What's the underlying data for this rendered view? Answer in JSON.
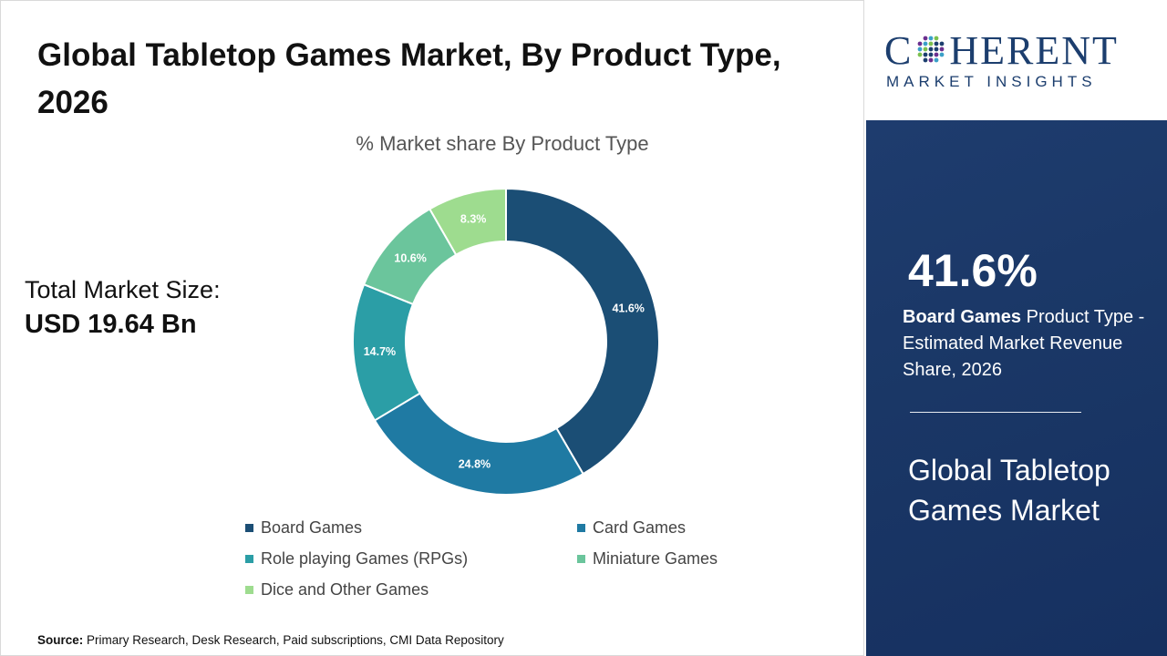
{
  "title": "Global Tabletop Games Market, By Product Type, 2026",
  "total_market": {
    "label": "Total Market Size:",
    "value": "USD 19.64 Bn"
  },
  "source": {
    "label": "Source:",
    "text": "Primary Research, Desk Research, Paid subscriptions, CMI Data Repository"
  },
  "brand": {
    "name_prefix": "C",
    "name_suffix": "HERENT",
    "tagline": "MARKET INSIGHTS"
  },
  "highlight": {
    "percent": "41.6%",
    "segment": "Board Games",
    "description": "Product Type - Estimated Market Revenue Share, 2026",
    "market_name": "Global Tabletop Games Market"
  },
  "colors": {
    "panel_bg": "#1a3766",
    "brand": "#1c3e6e"
  },
  "chart_data": {
    "type": "pie",
    "subtype": "donut",
    "title": "% Market share By Product Type",
    "categories": [
      "Board Games",
      "Card Games",
      "Role playing Games (RPGs)",
      "Miniature Games",
      "Dice and Other Games"
    ],
    "values": [
      41.6,
      24.8,
      14.7,
      10.6,
      8.3
    ],
    "data_labels": [
      "41.6%",
      "24.8%",
      "14.7%",
      "10.6%",
      "8.3%"
    ],
    "colors": [
      "#1b4e75",
      "#1f7aa3",
      "#2b9ea6",
      "#6bc59c",
      "#9edc8f"
    ],
    "legend_position": "bottom"
  }
}
